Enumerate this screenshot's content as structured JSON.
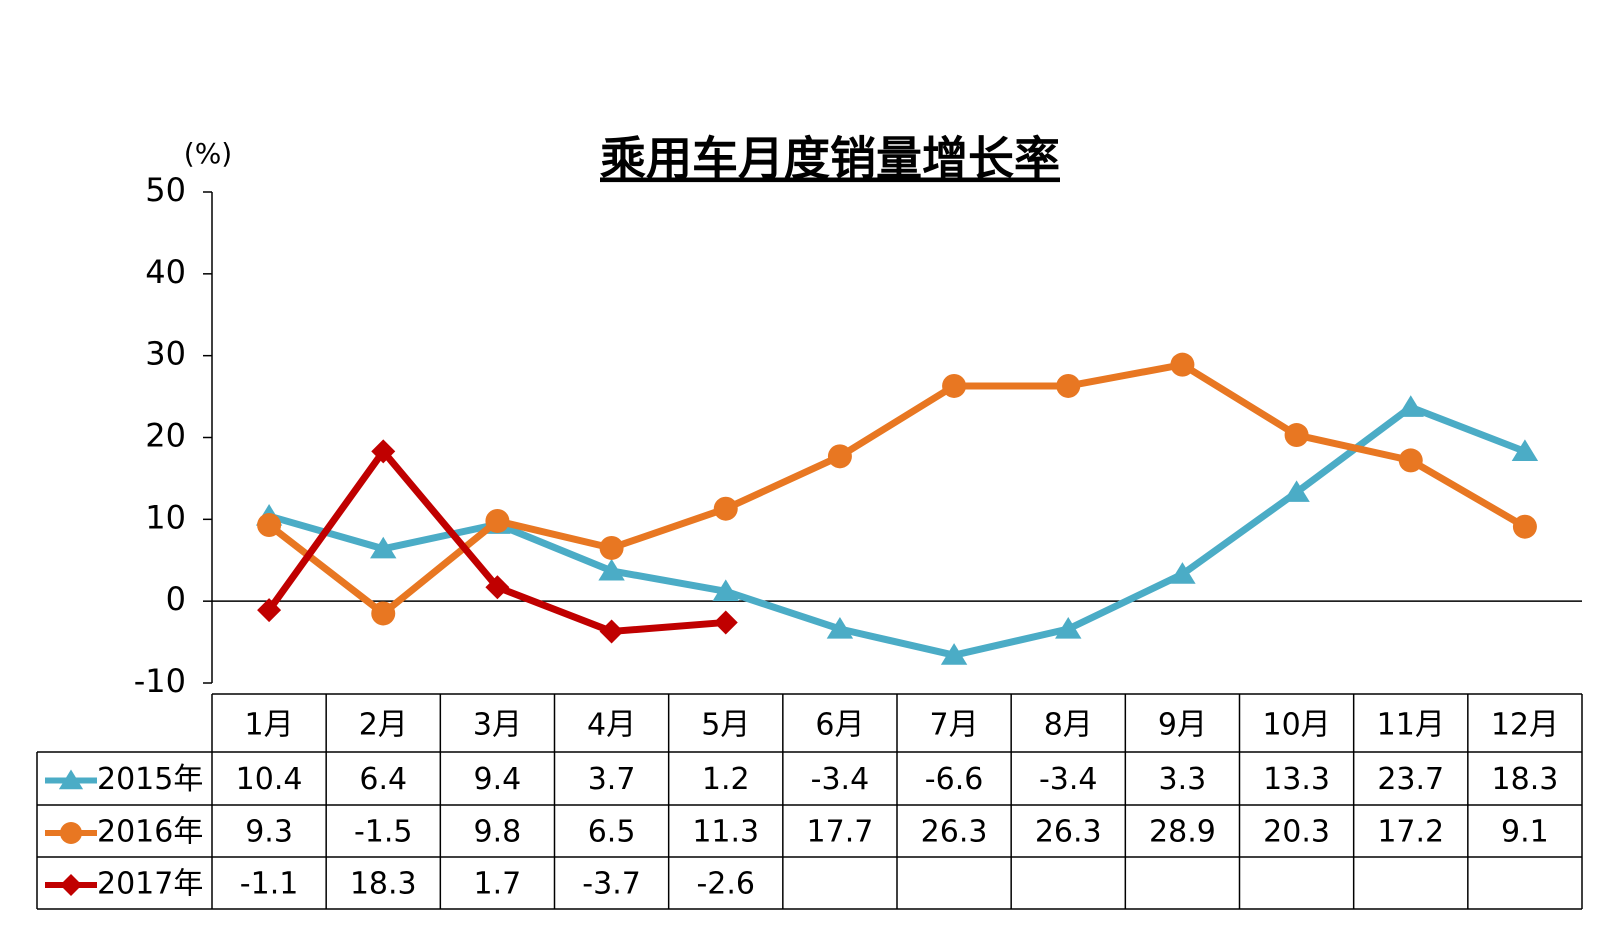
{
  "chart_data": {
    "type": "line",
    "title": "乘用车月度销量增长率",
    "y_label": "(%)",
    "categories": [
      "1月",
      "2月",
      "3月",
      "4月",
      "5月",
      "6月",
      "7月",
      "8月",
      "9月",
      "10月",
      "11月",
      "12月"
    ],
    "series": [
      {
        "name": "2015年",
        "color": "#4bacc6",
        "marker": "triangle",
        "values": [
          10.4,
          6.4,
          9.4,
          3.7,
          1.2,
          -3.4,
          -6.6,
          -3.4,
          3.3,
          13.3,
          23.7,
          18.3
        ]
      },
      {
        "name": "2016年",
        "color": "#e87722",
        "marker": "circle",
        "values": [
          9.3,
          -1.5,
          9.8,
          6.5,
          11.3,
          17.7,
          26.3,
          26.3,
          28.9,
          20.3,
          17.2,
          9.1
        ]
      },
      {
        "name": "2017年",
        "color": "#c00000",
        "marker": "diamond",
        "values": [
          -1.1,
          18.3,
          1.7,
          -3.7,
          -2.6,
          null,
          null,
          null,
          null,
          null,
          null,
          null
        ]
      }
    ],
    "ylim": [
      -10,
      50
    ],
    "yticks": [
      -10,
      0,
      10,
      20,
      30,
      40,
      50
    ]
  }
}
